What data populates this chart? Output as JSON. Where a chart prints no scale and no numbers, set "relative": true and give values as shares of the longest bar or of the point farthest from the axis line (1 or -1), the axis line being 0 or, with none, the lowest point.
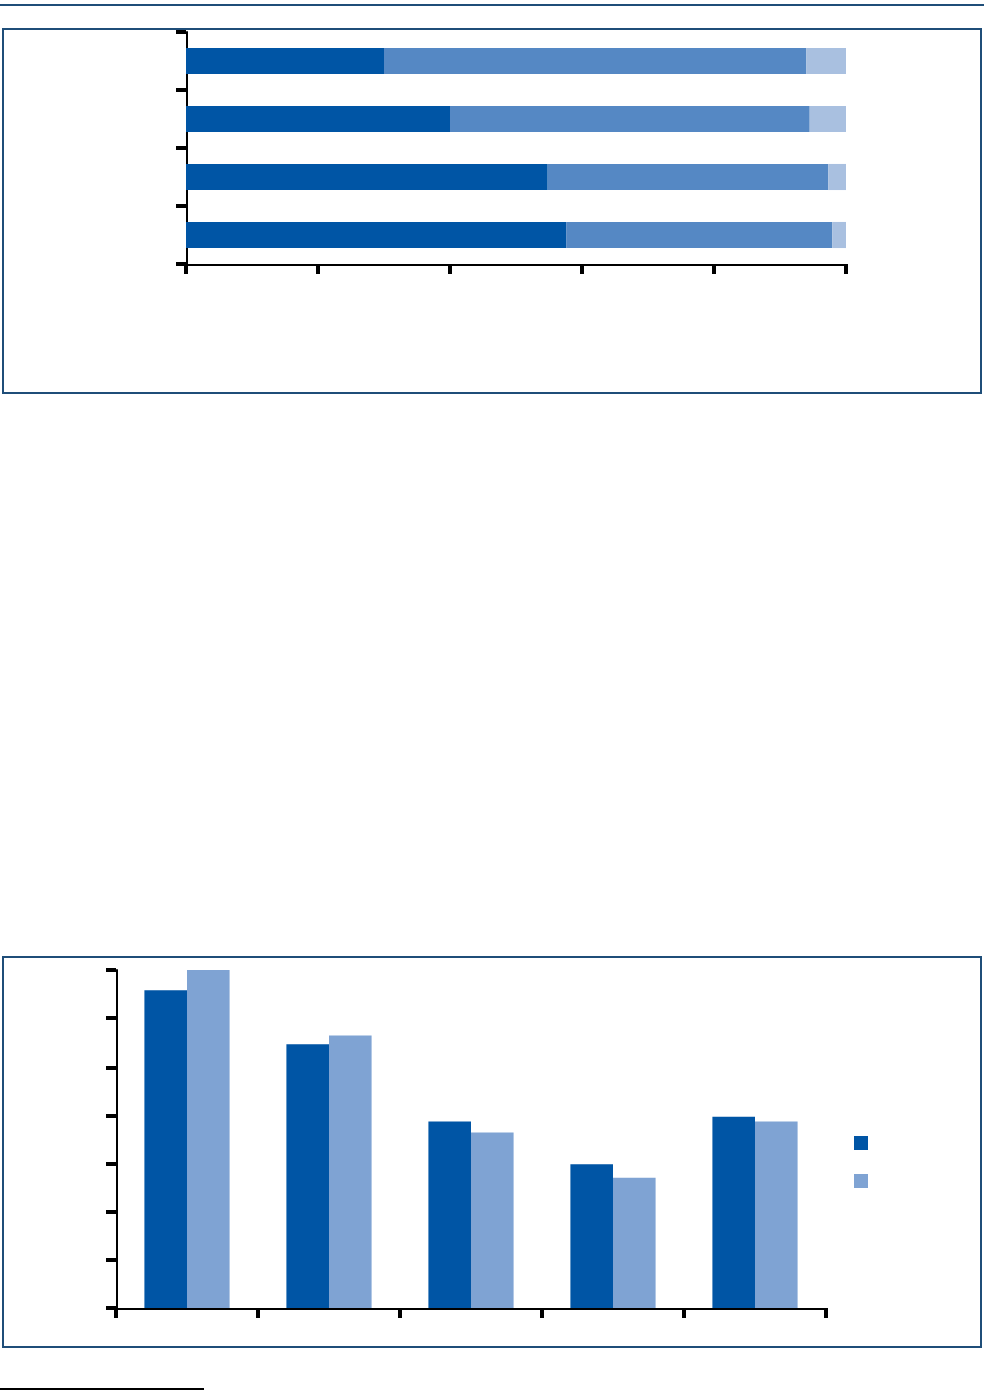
{
  "chart_data": [
    {
      "type": "bar",
      "orientation": "horizontal",
      "stacked": true,
      "relative": true,
      "categories": [
        null,
        null,
        null,
        null
      ],
      "series": [
        {
          "color": "#0055a5",
          "values": [
            0.3,
            0.4,
            0.548,
            0.576
          ]
        },
        {
          "color": "#5588c4",
          "values": [
            0.64,
            0.545,
            0.425,
            0.403
          ]
        },
        {
          "color": "#a9c0e0",
          "values": [
            0.06,
            0.055,
            0.027,
            0.021
          ]
        }
      ]
    },
    {
      "type": "bar",
      "relative": true,
      "categories": [
        null,
        null,
        null,
        null,
        null
      ],
      "series": [
        {
          "color": "#0055a5",
          "values": [
            0.94,
            0.78,
            0.552,
            0.425,
            0.566
          ]
        },
        {
          "color": "#7fa3d3",
          "values": [
            1,
            0.806,
            0.519,
            0.385,
            0.552
          ]
        }
      ]
    }
  ]
}
